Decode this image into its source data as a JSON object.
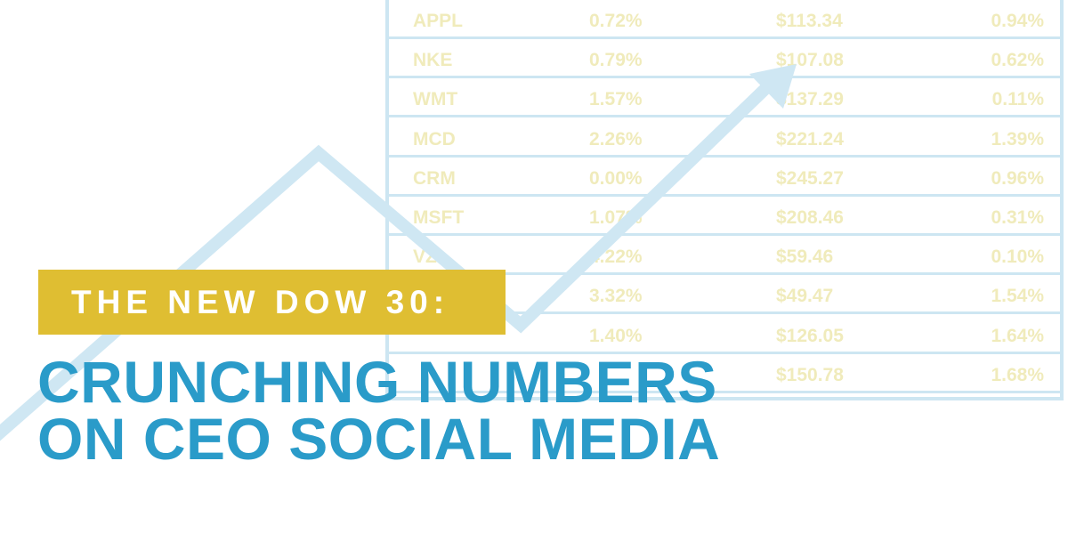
{
  "table": {
    "rows": [
      {
        "symbol": "APPL",
        "pct": "0.72%",
        "price": "$113.34",
        "change": "0.94%"
      },
      {
        "symbol": "NKE",
        "pct": "0.79%",
        "price": "$107.08",
        "change": "0.62%"
      },
      {
        "symbol": "WMT",
        "pct": "1.57%",
        "price": "$137.29",
        "change": "0.11%"
      },
      {
        "symbol": "MCD",
        "pct": "2.26%",
        "price": "$221.24",
        "change": "1.39%"
      },
      {
        "symbol": "CRM",
        "pct": "0.00%",
        "price": "$245.27",
        "change": "0.96%"
      },
      {
        "symbol": "MSFT",
        "pct": "1.07%",
        "price": "$208.46",
        "change": "0.31%"
      },
      {
        "symbol": "VZ",
        "pct": "4.22%",
        "price": "$59.46",
        "change": "0.10%"
      },
      {
        "symbol": "",
        "pct": "3.32%",
        "price": "$49.47",
        "change": "1.54%"
      },
      {
        "symbol": "",
        "pct": "1.40%",
        "price": "$126.05",
        "change": "1.64%"
      },
      {
        "symbol": "",
        "pct": "",
        "price": "$150.78",
        "change": "1.68%"
      }
    ]
  },
  "banner": {
    "subtitle": "THE NEW DOW 30:"
  },
  "headline": {
    "line1": "CRUNCHING NUMBERS",
    "line2": "ON CEO SOCIAL MEDIA"
  },
  "colors": {
    "banner": "#dfbe32",
    "headline": "#2a9bc9",
    "table_lines": "#cde6f2",
    "table_text": "#f0ebbb",
    "arrow": "#cfe7f3"
  }
}
